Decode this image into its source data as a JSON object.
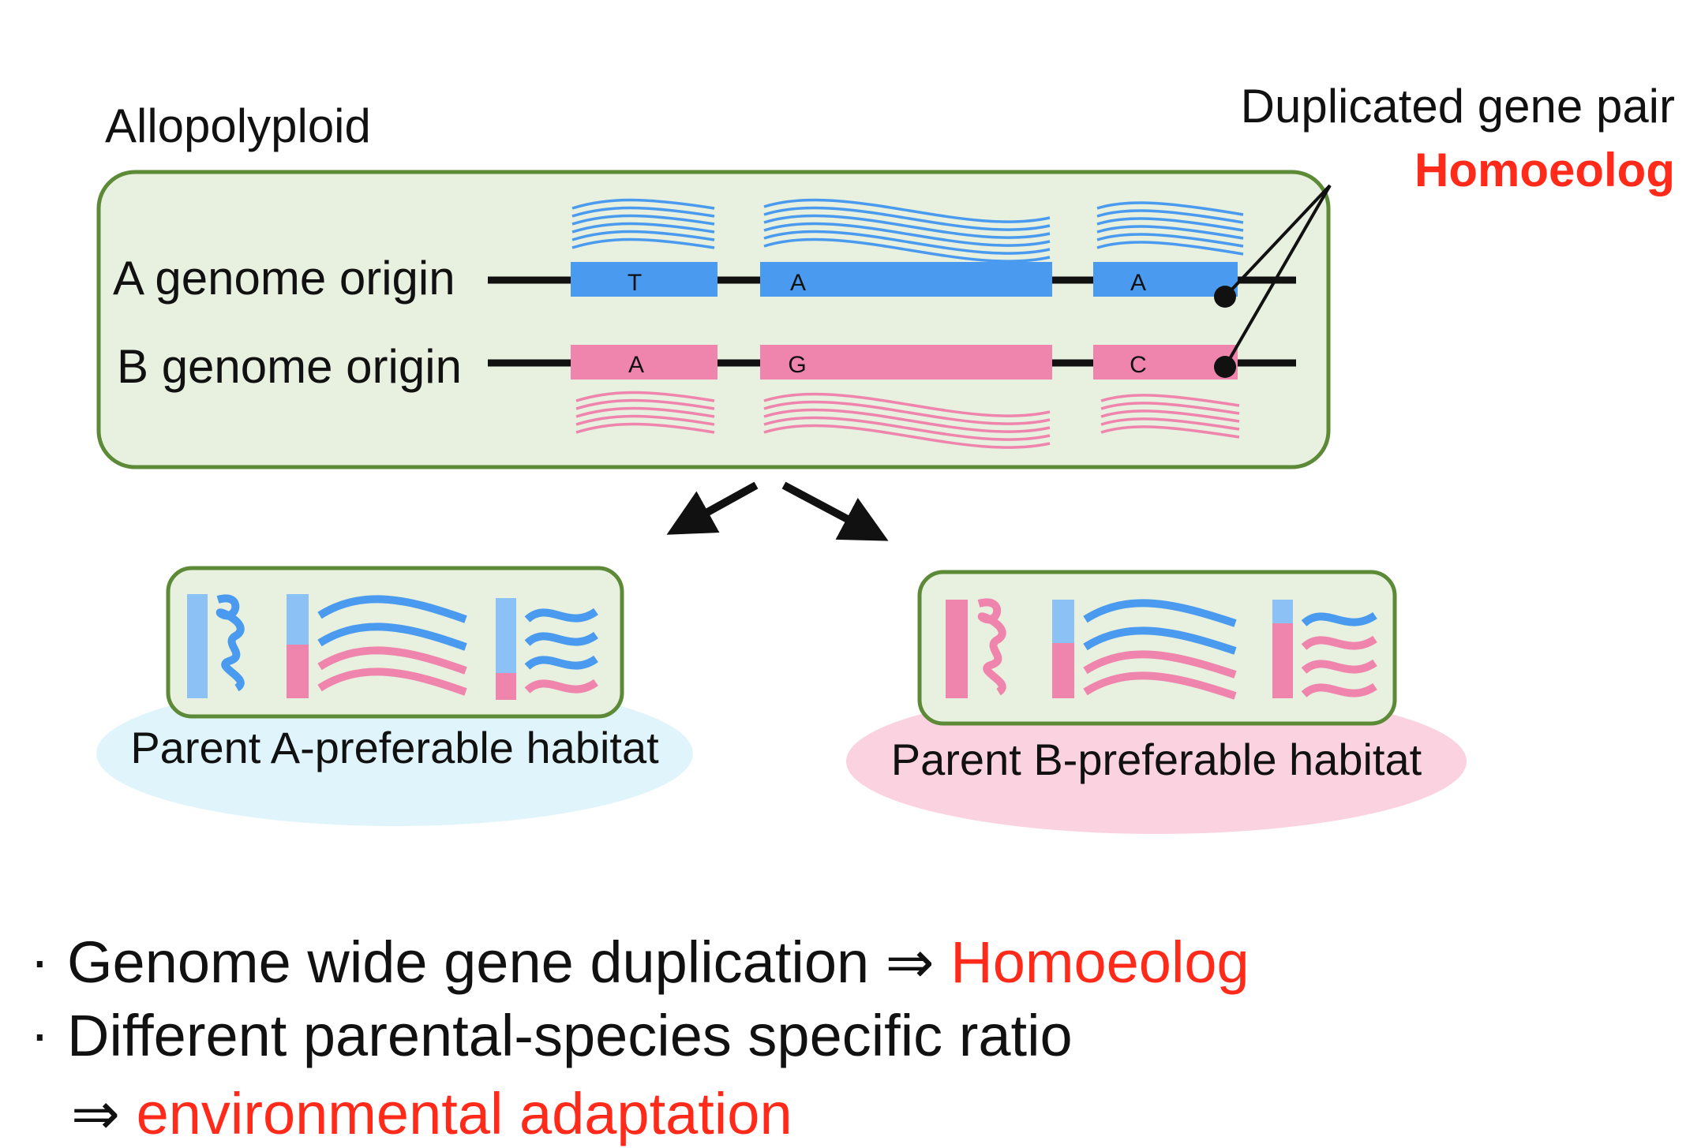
{
  "diagram": {
    "title": "Allopolyploid",
    "duplicated_label": "Duplicated gene pair",
    "homoeolog_label": "Homoeolog",
    "genome_a_label": "A genome origin",
    "genome_b_label": "B genome origin",
    "a_bases": [
      "T",
      "A",
      "A"
    ],
    "b_bases": [
      "A",
      "G",
      "C"
    ],
    "habitat_a_label": "Parent A-preferable habitat",
    "habitat_b_label": "Parent B-preferable habitat"
  },
  "bullets": {
    "marker": "·",
    "line1_text": "Genome wide gene duplication ⇒ ",
    "line1_highlight": "Homoeolog",
    "line2_text": "Different parental-species specific ratio",
    "line3_arrow": "⇒ ",
    "line3_highlight": "environmental adaptation"
  },
  "colors": {
    "a_blue": "#4a9bef",
    "b_pink": "#ef85ad",
    "box_fill": "#e8f0df",
    "box_border": "#5c8a36",
    "habitat_a": "#dff4fb",
    "habitat_b": "#fbd2df",
    "highlight_red": "#ff2a1a"
  }
}
